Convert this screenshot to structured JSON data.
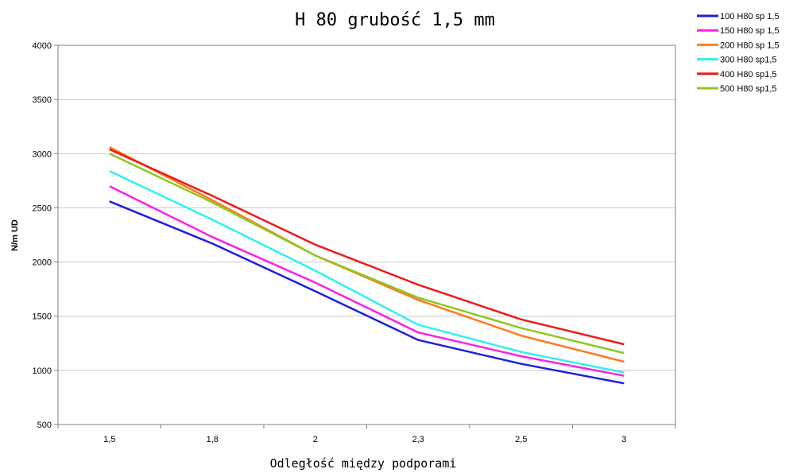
{
  "chart_data": {
    "type": "line",
    "title": "H 80 grubość 1,5 mm",
    "xlabel": "Odległość między podporami",
    "ylabel": "N/m UD",
    "categories": [
      "1,5",
      "1,8",
      "2",
      "2,3",
      "2,5",
      "3"
    ],
    "ylim": [
      500,
      4000
    ],
    "yticks": [
      500,
      1000,
      1500,
      2000,
      2500,
      3000,
      3500,
      4000
    ],
    "grid": "horizontal",
    "legend": "top-right",
    "series": [
      {
        "name": "100 H80 sp 1,5",
        "color": "#1f1fe0",
        "values": [
          2560,
          2170,
          1730,
          1280,
          1060,
          880
        ]
      },
      {
        "name": "150 H80 sp 1,5",
        "color": "#ff1fe8",
        "values": [
          2700,
          2230,
          1810,
          1350,
          1130,
          950
        ]
      },
      {
        "name": "200 H80 sp 1,5",
        "color": "#ff7a1f",
        "values": [
          3060,
          2570,
          2060,
          1650,
          1320,
          1080
        ]
      },
      {
        "name": "300 H80 sp1,5",
        "color": "#2ef2f2",
        "values": [
          2840,
          2390,
          1920,
          1420,
          1170,
          980
        ]
      },
      {
        "name": "400 H80 sp1,5",
        "color": "#ee1a1a",
        "values": [
          3040,
          2610,
          2160,
          1790,
          1470,
          1240
        ]
      },
      {
        "name": "500 H80 sp1,5",
        "color": "#8fc81f",
        "values": [
          3000,
          2550,
          2060,
          1670,
          1390,
          1160
        ]
      }
    ]
  }
}
